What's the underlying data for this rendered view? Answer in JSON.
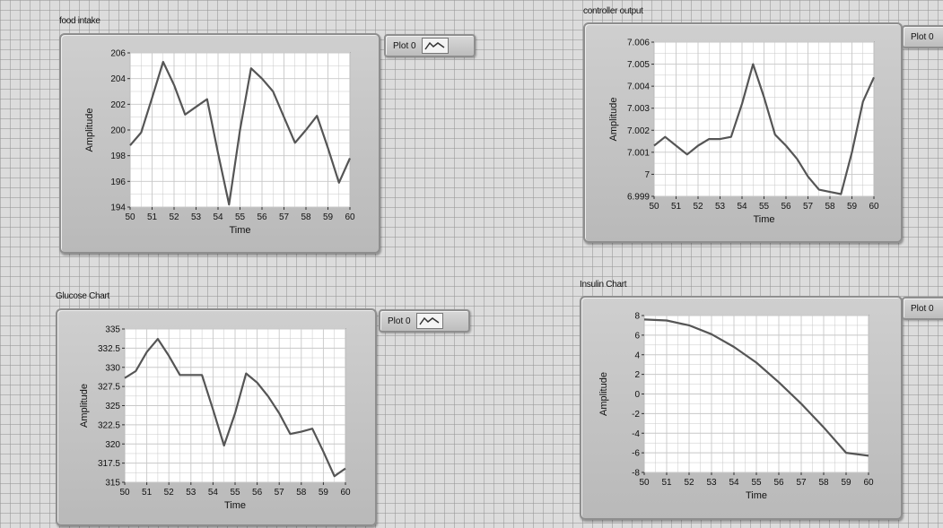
{
  "colors": {
    "plot_line": "#555555",
    "plot_bg": "#ffffff",
    "grid": "#c8c8c8"
  },
  "legend_icon": "line-plot-icon",
  "chart_data": [
    {
      "type": "line",
      "title": "food intake",
      "xlabel": "Time",
      "ylabel": "Amplitude",
      "legend": "Plot 0",
      "xlim": [
        50,
        60
      ],
      "ylim": [
        194,
        206
      ],
      "xticks": [
        "50",
        "51",
        "52",
        "53",
        "54",
        "55",
        "56",
        "57",
        "58",
        "59",
        "60"
      ],
      "yticks": [
        "194",
        "196",
        "198",
        "200",
        "202",
        "204",
        "206"
      ],
      "series": [
        {
          "name": "Plot 0",
          "x": [
            50,
            50.5,
            51,
            51.5,
            52,
            52.5,
            53,
            53.5,
            54,
            54.5,
            55,
            55.5,
            56,
            56.5,
            57,
            57.5,
            58,
            58.5,
            59,
            59.5,
            60
          ],
          "y": [
            198.8,
            199.8,
            202.5,
            205.3,
            203.5,
            201.2,
            201.8,
            202.4,
            198.2,
            194.2,
            200.0,
            204.8,
            204.0,
            203.0,
            201.0,
            199.0,
            200.0,
            201.1,
            198.6,
            195.9,
            197.8
          ]
        }
      ],
      "grid": true
    },
    {
      "type": "line",
      "title": "controller output",
      "xlabel": "Time",
      "ylabel": "Amplitude",
      "legend": "Plot 0",
      "xlim": [
        50,
        60
      ],
      "ylim": [
        6.999,
        7.006
      ],
      "xticks": [
        "50",
        "51",
        "52",
        "53",
        "54",
        "55",
        "56",
        "57",
        "58",
        "59",
        "60"
      ],
      "yticks": [
        "6.999",
        "7",
        "7.001",
        "7.002",
        "7.003",
        "7.004",
        "7.005",
        "7.006"
      ],
      "series": [
        {
          "name": "Plot 0",
          "x": [
            50,
            50.5,
            51,
            51.5,
            52,
            52.5,
            53,
            53.5,
            54,
            54.5,
            55,
            55.5,
            56,
            56.5,
            57,
            57.5,
            58,
            58.5,
            59,
            59.5,
            60
          ],
          "y": [
            7.0013,
            7.0017,
            7.0013,
            7.0009,
            7.0013,
            7.0016,
            7.0016,
            7.0017,
            7.0032,
            7.005,
            7.0035,
            7.0018,
            7.0013,
            7.0007,
            6.9999,
            6.9993,
            6.9992,
            6.9991,
            7.001,
            7.0033,
            7.0044
          ]
        }
      ],
      "grid": true
    },
    {
      "type": "line",
      "title": "Glucose Chart",
      "xlabel": "Time",
      "ylabel": "Amplitude",
      "legend": "Plot 0",
      "xlim": [
        50,
        60
      ],
      "ylim": [
        315,
        335
      ],
      "xticks": [
        "50",
        "51",
        "52",
        "53",
        "54",
        "55",
        "56",
        "57",
        "58",
        "59",
        "60"
      ],
      "yticks": [
        "315",
        "317.5",
        "320",
        "322.5",
        "325",
        "327.5",
        "330",
        "332.5",
        "335"
      ],
      "series": [
        {
          "name": "Plot 0",
          "x": [
            50,
            50.5,
            51,
            51.5,
            52,
            52.5,
            53,
            53.5,
            54,
            54.5,
            55,
            55.5,
            56,
            56.5,
            57,
            57.5,
            58,
            58.5,
            59,
            59.5,
            60
          ],
          "y": [
            328.6,
            329.5,
            332.0,
            333.7,
            331.5,
            329.0,
            329.0,
            329.0,
            324.5,
            319.8,
            324.0,
            329.2,
            328.0,
            326.2,
            324.0,
            321.3,
            321.6,
            322.0,
            319.0,
            315.8,
            316.8
          ]
        }
      ],
      "grid": true
    },
    {
      "type": "line",
      "title": "Insulin Chart",
      "xlabel": "Time",
      "ylabel": "Amplitude",
      "legend": "Plot 0",
      "xlim": [
        50,
        60
      ],
      "ylim": [
        -8,
        8
      ],
      "xticks": [
        "50",
        "51",
        "52",
        "53",
        "54",
        "55",
        "56",
        "57",
        "58",
        "59",
        "60"
      ],
      "yticks": [
        "-8",
        "-6",
        "-4",
        "-2",
        "0",
        "2",
        "4",
        "6",
        "8"
      ],
      "series": [
        {
          "name": "Plot 0",
          "x": [
            50,
            51,
            52,
            53,
            54,
            55,
            56,
            57,
            58,
            59,
            60
          ],
          "y": [
            7.6,
            7.5,
            7.0,
            6.1,
            4.8,
            3.2,
            1.2,
            -1.0,
            -3.4,
            -6.0,
            -6.3
          ]
        }
      ],
      "grid": true
    }
  ]
}
